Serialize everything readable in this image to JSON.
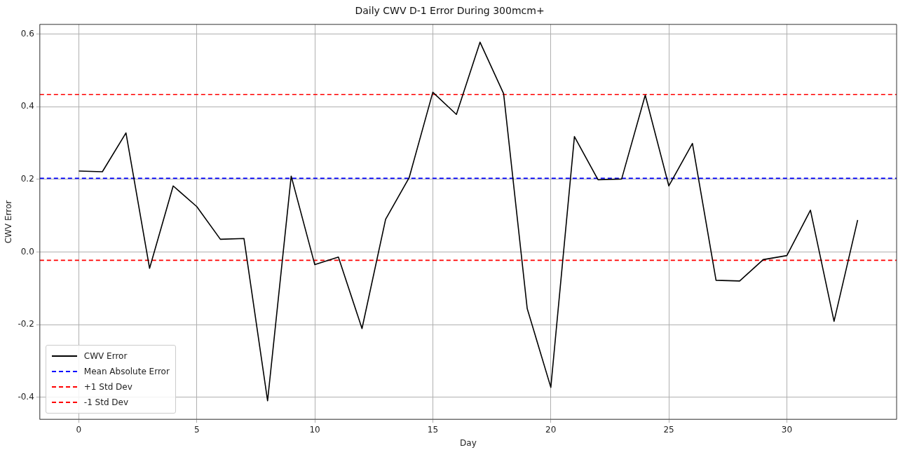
{
  "chart_data": {
    "type": "line",
    "title": "Daily CWV D-1 Error During 300mcm+",
    "xlabel": "Day",
    "ylabel": "CWV Error",
    "x": [
      0,
      1,
      2,
      3,
      4,
      5,
      6,
      7,
      8,
      9,
      10,
      11,
      12,
      13,
      14,
      15,
      16,
      17,
      18,
      19,
      20,
      21,
      22,
      23,
      24,
      25,
      26,
      27,
      28,
      29,
      30,
      31,
      32,
      33
    ],
    "series": [
      {
        "name": "CWV Error",
        "color": "#000000",
        "values": [
          0.223,
          0.221,
          0.328,
          -0.045,
          0.182,
          0.125,
          0.035,
          0.037,
          -0.41,
          0.209,
          -0.035,
          -0.014,
          -0.211,
          0.09,
          0.205,
          0.44,
          0.379,
          0.578,
          0.436,
          -0.156,
          -0.373,
          0.318,
          0.199,
          0.201,
          0.432,
          0.182,
          0.299,
          -0.078,
          -0.08,
          -0.021,
          -0.01,
          0.115,
          -0.191,
          0.088
        ]
      }
    ],
    "ref_lines": [
      {
        "axis": "y",
        "value": 0.203,
        "label": "Mean Absolute Error",
        "color": "#0000ff",
        "line_style": "dashed"
      },
      {
        "axis": "y",
        "value": 0.434,
        "label": "+1 Std Dev",
        "color": "#ff0000",
        "line_style": "dashed"
      },
      {
        "axis": "y",
        "value": -0.023,
        "label": "-1 Std Dev",
        "color": "#ff0000",
        "line_style": "dashed"
      }
    ],
    "xlim": [
      -1.65,
      34.65
    ],
    "xticks": [
      0,
      5,
      10,
      15,
      20,
      25,
      30
    ],
    "ylim": [
      -0.461,
      0.627
    ],
    "yticks": [
      -0.4,
      -0.2,
      {
        "value": 0,
        "label": "0.0"
      },
      0.2,
      0.4,
      0.6
    ],
    "grid": true,
    "legend": "bottom left",
    "marker": "none",
    "line_style": "solid"
  }
}
